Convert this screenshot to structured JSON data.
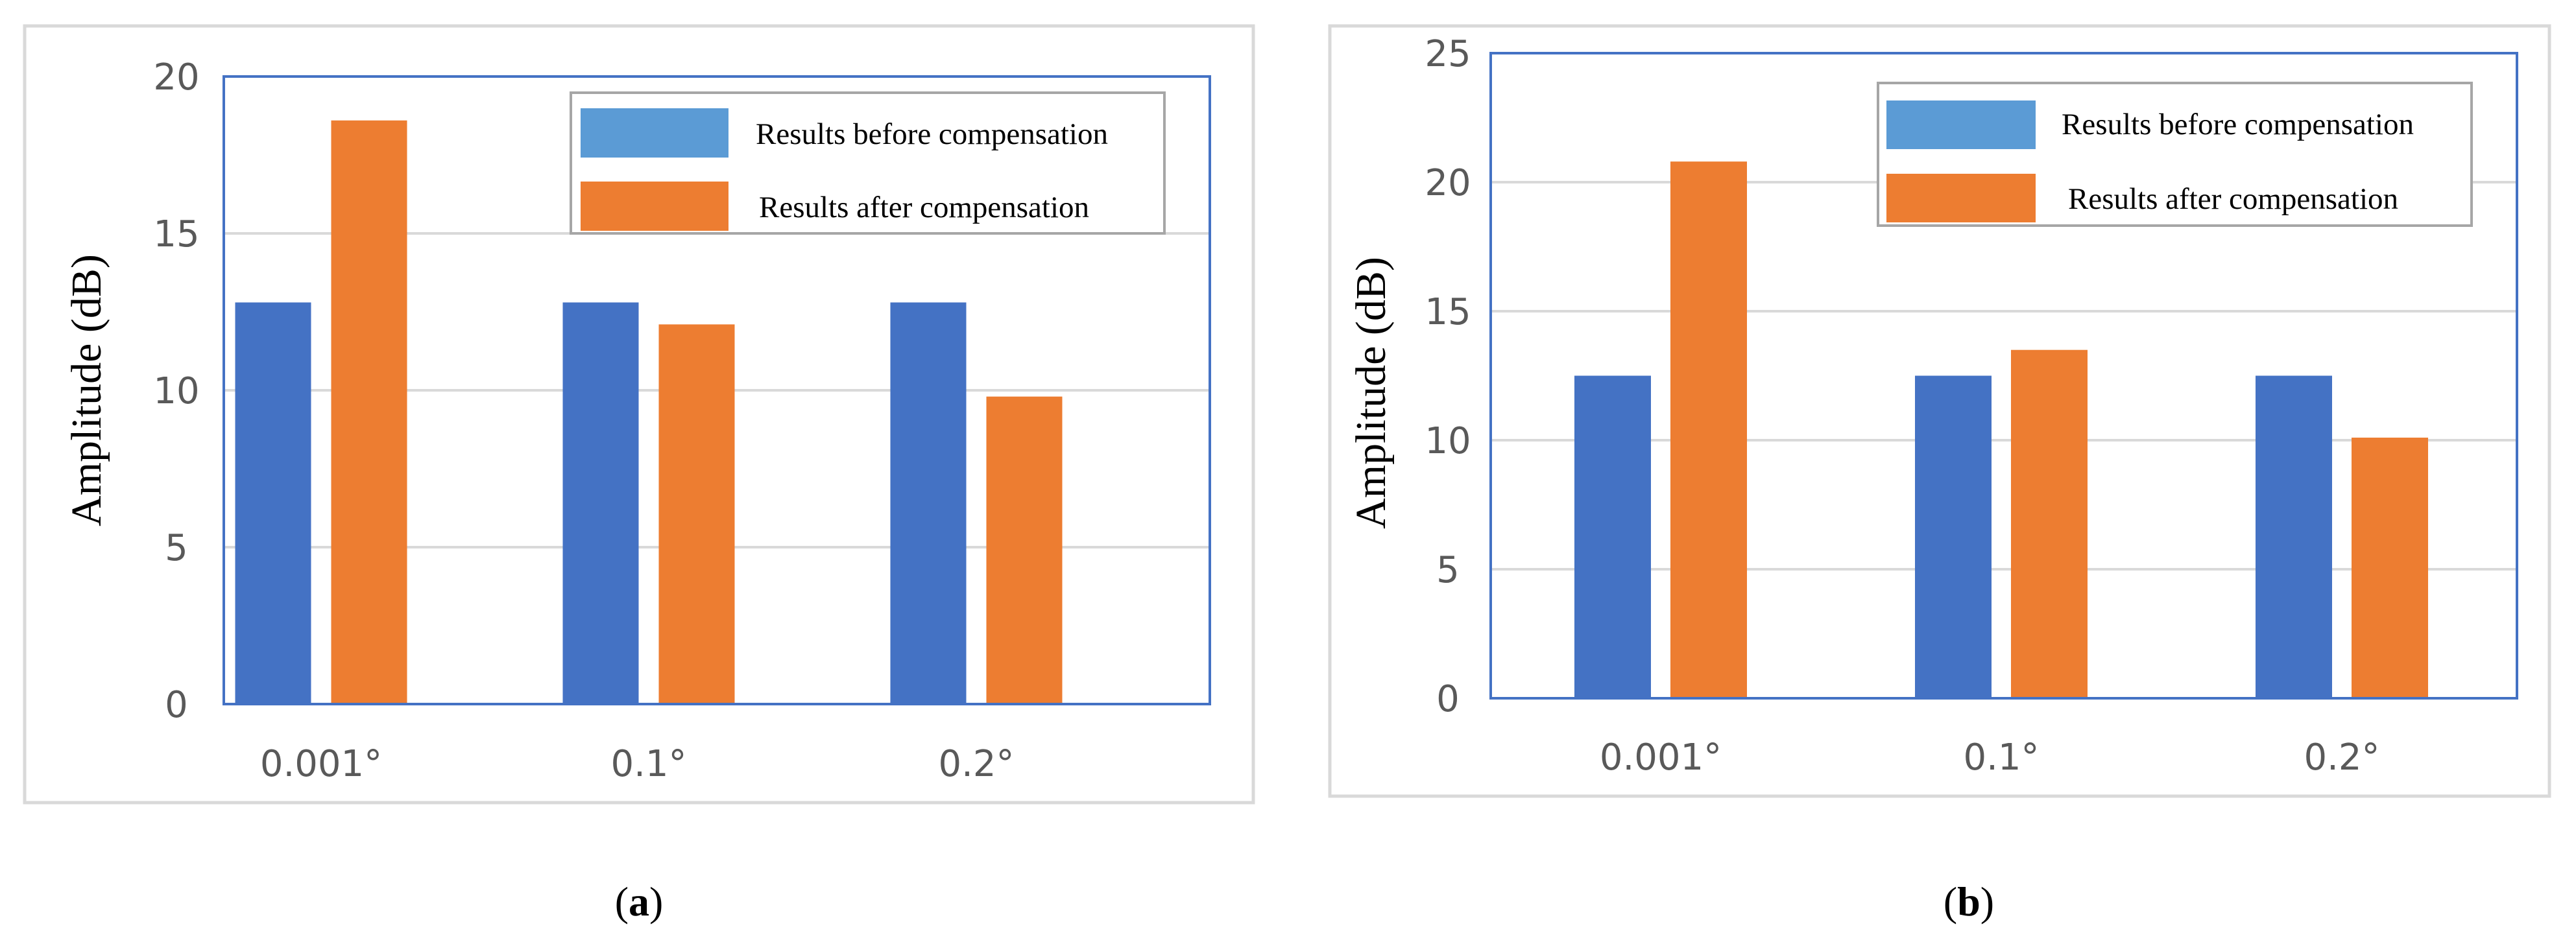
{
  "chart_data": [
    {
      "type": "bar",
      "panel_label": "a",
      "categories": [
        "0.001°",
        "0.1°",
        "0.2°"
      ],
      "series": [
        {
          "name": "Results before compensation",
          "values": [
            12.8,
            12.8,
            12.8
          ],
          "color": "#4472C4",
          "legend_color": "#5B9BD5"
        },
        {
          "name": "Results after compensation",
          "values": [
            18.6,
            12.1,
            9.8
          ],
          "color": "#ED7D31",
          "legend_color": "#ED7D31"
        }
      ],
      "title": "",
      "xlabel": "",
      "ylabel": "Amplitude (dB)",
      "ylim": [
        0,
        20
      ],
      "yticks": [
        0,
        5,
        10,
        15,
        20
      ],
      "grid": true,
      "legend_position": "top-right"
    },
    {
      "type": "bar",
      "panel_label": "b",
      "categories": [
        "0.001°",
        "0.1°",
        "0.2°"
      ],
      "series": [
        {
          "name": "Results before compensation",
          "values": [
            12.5,
            12.5,
            12.5
          ],
          "color": "#4472C4",
          "legend_color": "#5B9BD5"
        },
        {
          "name": "Results after compensation",
          "values": [
            20.8,
            13.5,
            10.1
          ],
          "color": "#ED7D31",
          "legend_color": "#ED7D31"
        }
      ],
      "title": "",
      "xlabel": "",
      "ylabel": "Amplitude (dB)",
      "ylim": [
        0,
        25
      ],
      "yticks": [
        0,
        5,
        10,
        15,
        20,
        25
      ],
      "grid": true,
      "legend_position": "top-right"
    }
  ],
  "colors": {
    "grid": "#D9D9D9",
    "axis_frame": "#4472C4",
    "outer_border": "#D9D9D9",
    "legend_border": "#A6A6A6",
    "tick_text": "#595959"
  }
}
